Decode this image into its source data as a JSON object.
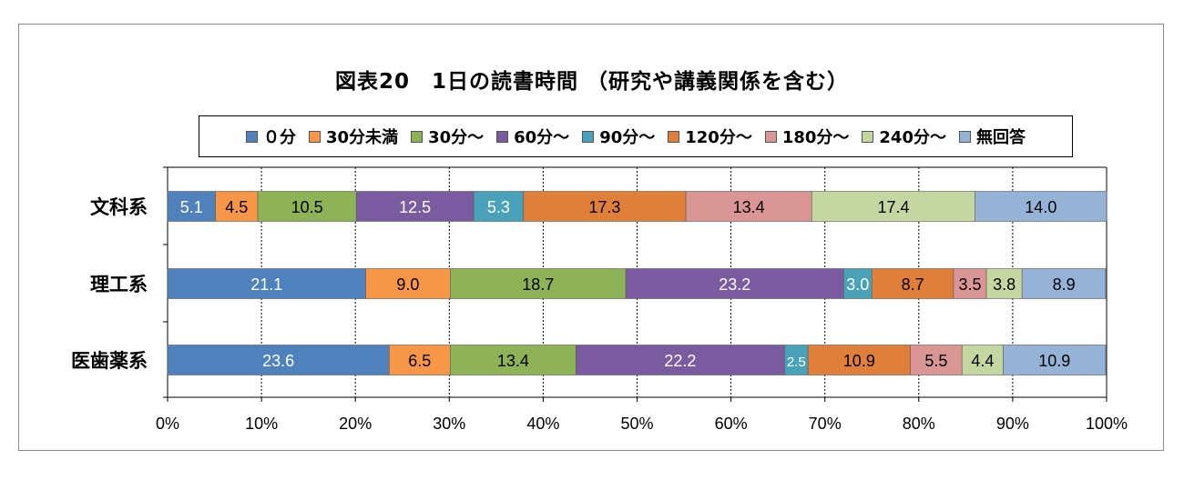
{
  "title": "図表20　1日の読書時間 （研究や講義関係を含む）",
  "chart_data": {
    "type": "bar",
    "stacked": true,
    "orientation": "horizontal",
    "title": "図表20　1日の読書時間 （研究や講義関係を含む）",
    "categories": [
      "文科系",
      "理工系",
      "医歯薬系"
    ],
    "xlim": [
      0,
      100
    ],
    "x_tick_labels": [
      "0%",
      "10%",
      "20%",
      "30%",
      "40%",
      "50%",
      "60%",
      "70%",
      "80%",
      "90%",
      "100%"
    ],
    "grid": true,
    "legend_position": "top",
    "series": [
      {
        "name": "０分",
        "color": "#4f81bd",
        "label_color": "#ffffff",
        "values": [
          5.1,
          21.1,
          23.6
        ]
      },
      {
        "name": "30分未満",
        "color": "#f79646",
        "label_color": "#000000",
        "values": [
          4.5,
          9.0,
          6.5
        ]
      },
      {
        "name": "30分～",
        "color": "#8db356",
        "label_color": "#000000",
        "values": [
          10.5,
          18.7,
          13.4
        ]
      },
      {
        "name": "60分～",
        "color": "#7b5b9f",
        "label_color": "#ffffff",
        "values": [
          12.5,
          23.2,
          22.2
        ]
      },
      {
        "name": "90分～",
        "color": "#4aa2ba",
        "label_color": "#ffffff",
        "values": [
          5.3,
          3.0,
          2.5
        ]
      },
      {
        "name": "120分～",
        "color": "#e07f3a",
        "label_color": "#000000",
        "values": [
          17.3,
          8.7,
          10.9
        ]
      },
      {
        "name": "180分～",
        "color": "#d99694",
        "label_color": "#000000",
        "values": [
          13.4,
          3.5,
          5.5
        ]
      },
      {
        "name": "240分～",
        "color": "#c4d7a0",
        "label_color": "#000000",
        "values": [
          17.4,
          3.8,
          4.4
        ]
      },
      {
        "name": "無回答",
        "color": "#95b3d7",
        "label_color": "#000000",
        "values": [
          14.0,
          8.9,
          10.9
        ]
      }
    ]
  }
}
